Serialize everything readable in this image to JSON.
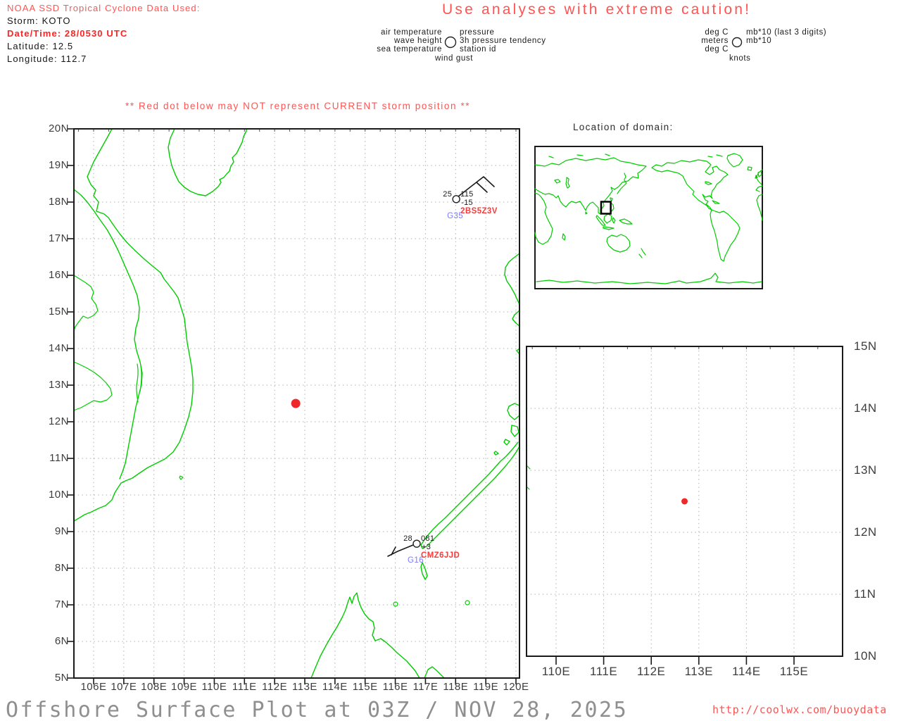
{
  "header": {
    "line1": "NOAA SSD Tropical Cyclone Data Used:",
    "storm": "Storm: KOTO",
    "datetime": "Date/Time: 28/0530 UTC",
    "latitude": "Latitude: 12.5",
    "longitude": "Longitude: 112.7"
  },
  "caution": "Use analyses with extreme caution!",
  "legend_station": {
    "left": [
      "air temperature",
      "wave height",
      "sea temperature"
    ],
    "right": [
      "pressure",
      "3h pressure tendency",
      "station id"
    ],
    "bottom": "wind gust"
  },
  "legend_units": {
    "left": [
      "deg C",
      "meters",
      "deg C"
    ],
    "right": [
      "mb*10 (last 3 digits)",
      "mb*10"
    ],
    "bottom": "knots"
  },
  "warning": "** Red dot below may NOT represent CURRENT storm position **",
  "inset": {
    "title": "Location of domain:"
  },
  "main_map": {
    "y_ticks": [
      "20N",
      "19N",
      "18N",
      "17N",
      "16N",
      "15N",
      "14N",
      "13N",
      "12N",
      "11N",
      "10N",
      "9N",
      "8N",
      "7N",
      "6N",
      "5N"
    ],
    "x_ticks": [
      "106E",
      "107E",
      "108E",
      "109E",
      "110E",
      "111E",
      "112E",
      "113E",
      "114E",
      "115E",
      "116E",
      "117E",
      "118E",
      "119E",
      "120E"
    ]
  },
  "zoom_map": {
    "y_ticks": [
      "15N",
      "14N",
      "13N",
      "12N",
      "11N",
      "10N"
    ],
    "x_ticks": [
      "110E",
      "111E",
      "112E",
      "113E",
      "114E",
      "115E"
    ]
  },
  "storm_position": {
    "lat": 12.5,
    "lon": 112.7
  },
  "stations": [
    {
      "id": "2BS5Z3V",
      "air_temp": "25",
      "pressure": "115",
      "pressure_tendency": "-15",
      "wind_gust": "G35",
      "lat": 18.08,
      "lon": 118.02
    },
    {
      "id": "CMZ6JJD",
      "air_temp": "28",
      "pressure": "081",
      "pressure_tendency": "+3",
      "wind_gust": "G16",
      "lat": 8.67,
      "lon": 116.71
    }
  ],
  "footer": {
    "title": "Offshore Surface Plot at 03Z / NOV 28, 2025",
    "url": "http://coolwx.com/buoydata"
  },
  "colors": {
    "coastline": "#00cd00",
    "salmon_text": "#ff5452",
    "storm_dot": "#ef2929",
    "gust_blue": "#7b7bff",
    "station_id_red": "#fa3a3a"
  }
}
